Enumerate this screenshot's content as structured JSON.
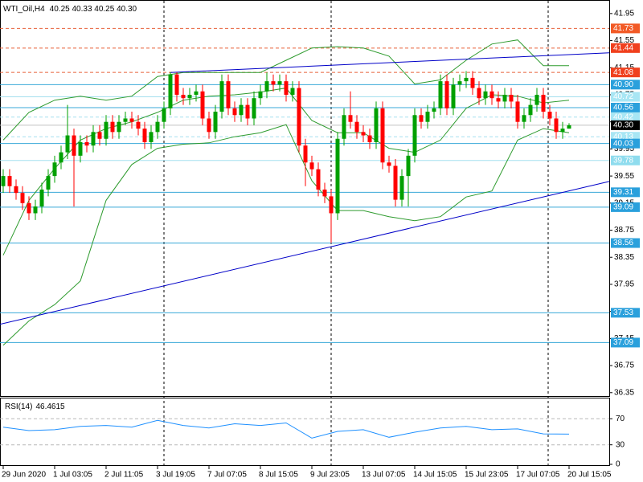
{
  "chart_data": [
    {
      "type": "candlestick",
      "title": "WTI_Oil,H4",
      "subtitle": "40.25 40.33 40.25 40.30",
      "categories": [
        "29 Jun 2020",
        null,
        null,
        null,
        null,
        null,
        null,
        null,
        "1 Jul 03:05",
        null,
        null,
        null,
        null,
        null,
        null,
        null,
        "2 Jul 11:05",
        null,
        null,
        null,
        null,
        null,
        null,
        null,
        "3 Jul 19:05",
        null,
        null,
        null,
        null,
        null,
        null,
        null,
        "7 Jul 07:05",
        null,
        null,
        null,
        null,
        null,
        null,
        null,
        "8 Jul 15:05",
        null,
        null,
        null,
        null,
        null,
        null,
        null,
        "9 Jul 23:05",
        null,
        null,
        null,
        null,
        null,
        null,
        null,
        "13 Jul 07:05",
        null,
        null,
        null,
        null,
        null,
        null,
        null,
        "14 Jul 15:05",
        null,
        null,
        null,
        null,
        null,
        null,
        null,
        "15 Jul 23:05",
        null,
        null,
        null,
        null,
        null,
        null,
        null,
        "17 Jul 07:05",
        null,
        null,
        null,
        null,
        null,
        null,
        null,
        "20 Jul 15:05"
      ],
      "open": [
        39.4,
        39.55,
        39.4,
        39.3,
        39.15,
        39.0,
        39.1,
        39.35,
        39.55,
        39.75,
        39.9,
        40.15,
        39.85,
        40.05,
        40.0,
        40.2,
        40.1,
        40.35,
        40.2,
        40.35,
        40.4,
        40.35,
        40.25,
        40.05,
        40.2,
        40.35,
        40.55,
        41.05,
        40.75,
        40.7,
        40.75,
        40.8,
        40.4,
        40.2,
        40.5,
        40.95,
        40.55,
        40.45,
        40.6,
        40.4,
        40.7,
        40.8,
        40.95,
        40.9,
        40.95,
        40.75,
        40.85,
        40.0,
        39.75,
        39.65,
        39.35,
        39.25,
        39.0,
        40.1,
        40.45,
        40.35,
        40.2,
        40.15,
        40.05,
        40.55,
        39.75,
        39.7,
        39.2,
        39.55,
        39.85,
        40.45,
        40.35,
        40.5,
        40.55,
        40.95,
        40.55,
        40.9,
        40.95,
        41.0,
        40.85,
        40.7,
        40.8,
        40.7,
        40.65,
        40.75,
        40.65,
        40.35,
        40.45,
        40.6,
        40.75,
        40.5,
        40.4,
        40.2,
        40.25
      ],
      "high": [
        39.65,
        39.65,
        39.5,
        39.4,
        39.25,
        39.2,
        39.45,
        39.65,
        39.85,
        40.0,
        40.6,
        40.25,
        40.15,
        40.15,
        40.3,
        40.3,
        40.45,
        40.45,
        40.45,
        40.5,
        40.5,
        40.45,
        40.35,
        40.3,
        40.45,
        40.65,
        41.08,
        41.08,
        40.85,
        40.85,
        40.9,
        40.9,
        40.5,
        40.6,
        41.05,
        41.05,
        40.65,
        40.7,
        40.7,
        40.8,
        40.9,
        41.08,
        41.05,
        41.05,
        41.05,
        40.95,
        40.95,
        40.1,
        39.85,
        39.75,
        39.45,
        39.35,
        40.2,
        40.55,
        40.8,
        40.45,
        40.3,
        40.25,
        40.65,
        40.65,
        39.85,
        39.8,
        39.65,
        39.95,
        40.55,
        40.55,
        40.6,
        40.65,
        41.05,
        41.05,
        41.0,
        41.05,
        41.1,
        41.1,
        40.95,
        40.9,
        40.9,
        40.8,
        40.85,
        40.85,
        40.75,
        40.55,
        40.7,
        40.85,
        40.85,
        40.6,
        40.5,
        40.35,
        40.33
      ],
      "low": [
        39.3,
        39.3,
        39.2,
        39.05,
        38.9,
        38.9,
        39.0,
        39.25,
        39.45,
        39.65,
        39.8,
        39.1,
        39.75,
        39.9,
        39.9,
        40.0,
        40.0,
        40.1,
        40.1,
        40.3,
        40.25,
        40.15,
        39.95,
        39.95,
        40.1,
        40.25,
        40.45,
        40.65,
        40.6,
        40.6,
        40.65,
        40.3,
        40.1,
        40.1,
        40.4,
        40.45,
        40.35,
        40.35,
        40.3,
        40.3,
        40.6,
        40.7,
        40.8,
        40.8,
        40.65,
        40.65,
        39.9,
        39.4,
        39.55,
        39.25,
        39.15,
        38.56,
        38.9,
        40.0,
        40.25,
        40.1,
        40.05,
        39.95,
        39.95,
        39.65,
        39.6,
        39.1,
        39.1,
        39.1,
        39.75,
        40.25,
        40.25,
        40.4,
        40.45,
        40.45,
        40.45,
        40.8,
        40.85,
        40.75,
        40.6,
        40.6,
        40.6,
        40.55,
        40.55,
        40.55,
        40.25,
        40.25,
        40.35,
        40.5,
        40.4,
        40.3,
        40.1,
        40.1,
        40.25
      ],
      "close": [
        39.55,
        39.4,
        39.3,
        39.15,
        39.0,
        39.1,
        39.35,
        39.55,
        39.75,
        39.9,
        40.15,
        39.85,
        40.05,
        40.0,
        40.2,
        40.1,
        40.35,
        40.2,
        40.35,
        40.4,
        40.35,
        40.25,
        40.05,
        40.2,
        40.35,
        40.55,
        41.05,
        40.75,
        40.7,
        40.75,
        40.8,
        40.4,
        40.2,
        40.5,
        40.95,
        40.55,
        40.45,
        40.6,
        40.4,
        40.7,
        40.8,
        40.95,
        40.9,
        40.95,
        40.75,
        40.85,
        40.0,
        39.75,
        39.65,
        39.35,
        39.25,
        39.0,
        40.1,
        40.45,
        40.35,
        40.2,
        40.15,
        40.05,
        40.55,
        39.75,
        39.7,
        39.2,
        39.55,
        39.85,
        40.45,
        40.35,
        40.5,
        40.55,
        40.95,
        40.55,
        40.9,
        40.95,
        41.0,
        40.85,
        40.7,
        40.8,
        40.7,
        40.65,
        40.75,
        40.65,
        40.35,
        40.45,
        40.6,
        40.75,
        40.5,
        40.4,
        40.2,
        40.25,
        40.3
      ],
      "colors": {
        "up": "#00a000",
        "down": "#ff0000"
      },
      "xlim": [
        -0.5,
        94.25
      ],
      "ylim": [
        36.3,
        42.15
      ],
      "yticks": [
        41.95,
        41.55,
        41.15,
        40.75,
        40.35,
        39.95,
        39.55,
        39.15,
        38.75,
        38.35,
        37.95,
        37.55,
        37.15,
        36.75,
        36.35
      ],
      "bands": {
        "color": "#2e9b2e",
        "x": [
          0,
          4,
          8,
          12,
          16,
          20,
          24,
          28,
          32,
          36,
          40,
          44,
          48,
          52,
          56,
          60,
          64,
          68,
          72,
          76,
          80,
          84,
          88
        ],
        "upper": [
          40.08,
          40.49,
          40.67,
          40.73,
          40.67,
          40.73,
          41.02,
          41.08,
          41.08,
          41.08,
          41.08,
          41.26,
          41.44,
          41.46,
          41.44,
          41.32,
          40.91,
          40.97,
          41.26,
          41.5,
          41.56,
          41.18,
          41.18
        ],
        "middle": [
          38.38,
          39.19,
          39.66,
          40.08,
          40.25,
          40.35,
          40.49,
          40.67,
          40.73,
          40.75,
          40.79,
          40.85,
          40.37,
          40.19,
          40.19,
          39.96,
          39.9,
          40.08,
          40.55,
          40.75,
          40.73,
          40.63,
          40.67
        ],
        "lower": [
          37.05,
          37.41,
          37.65,
          38.0,
          39.19,
          39.72,
          39.96,
          40.02,
          40.04,
          40.13,
          40.19,
          40.31,
          39.48,
          39.04,
          39.04,
          38.95,
          38.89,
          38.95,
          39.24,
          39.33,
          40.08,
          40.25,
          40.19
        ]
      },
      "trendlines": [
        {
          "color": "#0000c8",
          "x": [
            26,
            94.25
          ],
          "values": [
            41.08,
            41.37
          ]
        },
        {
          "color": "#0000c8",
          "x": [
            -0.5,
            94.25
          ],
          "values": [
            37.36,
            39.47
          ]
        }
      ],
      "levels": [
        {
          "value": 41.73,
          "color": "#e8603a",
          "label_color": "#f25a26",
          "dashed": true
        },
        {
          "value": 41.44,
          "color": "#e8603a",
          "label_color": "#f0401e",
          "dashed": true
        },
        {
          "value": 41.08,
          "color": "#e8603a",
          "label_color": "#f0401e",
          "dashed": true
        },
        {
          "value": 40.9,
          "label": "40.90",
          "color": "#38a8d8",
          "label_color": "#2aa0dc"
        },
        {
          "value": 40.72,
          "color": "#a6e0ef",
          "label_color": "#a8e6f4"
        },
        {
          "value": 40.56,
          "color": "#38a8d8",
          "label_color": "#2aa0dc"
        },
        {
          "value": 40.42,
          "color": "#a6e0ef",
          "label_color": "#a8e6f4",
          "dashed": true
        },
        {
          "value": 40.13,
          "color": "#a6e0ef",
          "label_color": "#a8e6f4",
          "dashed": true
        },
        {
          "value": 40.03,
          "color": "#38a8d8",
          "label_color": "#2aa0dc"
        },
        {
          "value": 39.78,
          "color": "#a6e0ef",
          "label_color": "#8fdcee"
        },
        {
          "value": 39.31,
          "color": "#38a8d8",
          "label_color": "#2aa0dc"
        },
        {
          "value": 39.09,
          "color": "#38a8d8",
          "label_color": "#2aa0dc"
        },
        {
          "value": 38.56,
          "color": "#38a8d8",
          "label_color": "#2aa0dc"
        },
        {
          "value": 37.53,
          "color": "#38a8d8",
          "label_color": "#2aa0dc"
        },
        {
          "value": 37.09,
          "color": "#38a8d8",
          "label_color": "#2aa0dc"
        },
        {
          "value": 40.3,
          "label": "40.30",
          "color": "#c0c0c0",
          "label_color": "#000000"
        }
      ]
    },
    {
      "type": "line",
      "title": "RSI(14)",
      "color": "#1e90ff",
      "x": [
        0,
        4,
        8,
        12,
        16,
        20,
        24,
        28,
        32,
        36,
        40,
        44,
        48,
        52,
        56,
        60,
        64,
        68,
        72,
        76,
        80,
        84,
        88
      ],
      "values": [
        57.1,
        51.9,
        53.2,
        58.4,
        59.7,
        57.1,
        67.5,
        59.7,
        55.8,
        62.3,
        59.7,
        63.6,
        40.3,
        50.6,
        53.2,
        41.6,
        49.4,
        55.8,
        58.4,
        53.2,
        54.5,
        46.8,
        46.4615
      ],
      "ylim": [
        0,
        100
      ],
      "yticks": [
        0,
        30,
        70
      ],
      "levels": [
        30,
        70
      ]
    }
  ]
}
